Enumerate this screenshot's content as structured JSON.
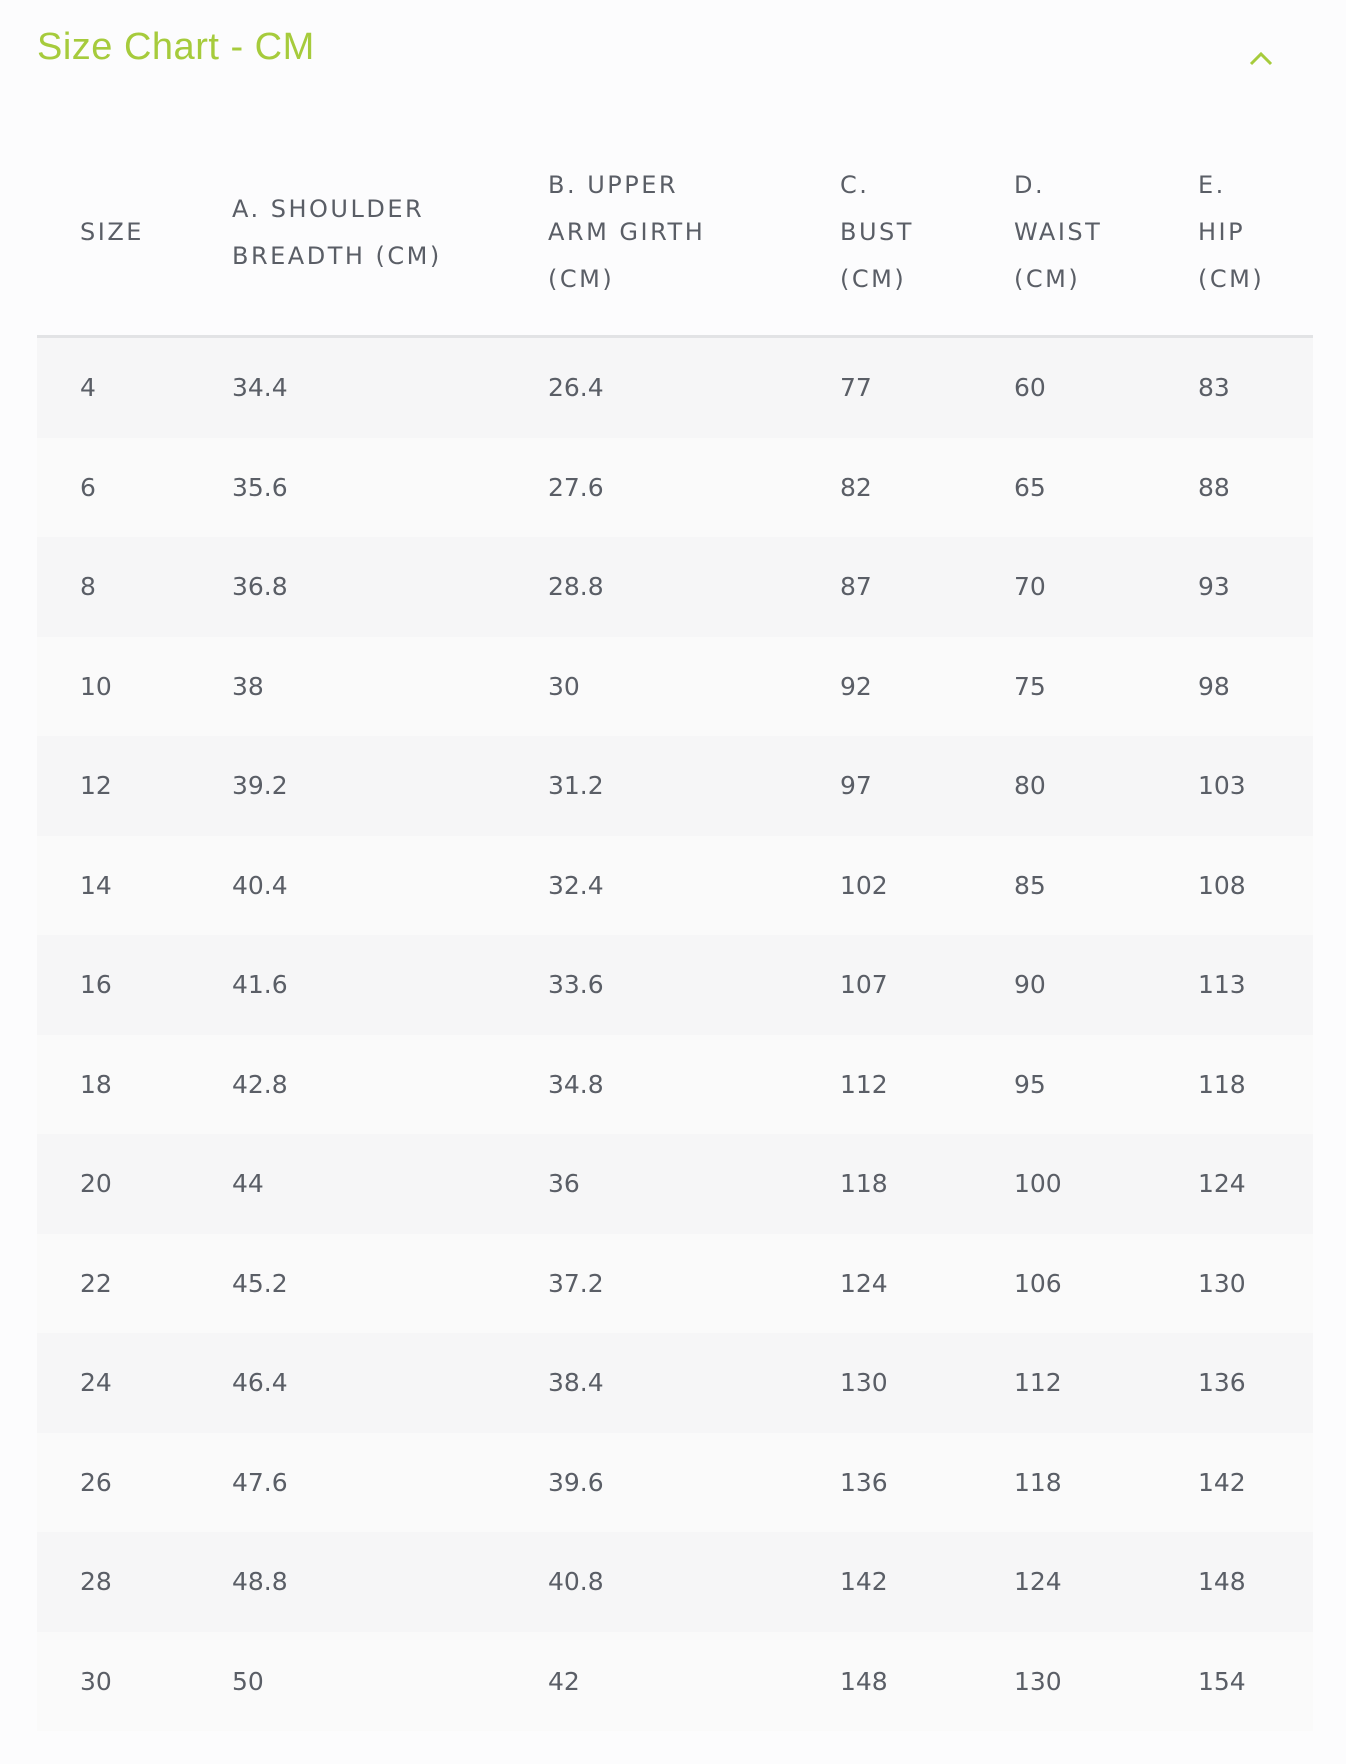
{
  "title": "Size Chart - CM",
  "colors": {
    "accent": "#a6cb3c",
    "text": "#5a5e66"
  },
  "collapse_icon": "chevron-up-icon",
  "headers": [
    [
      "SIZE"
    ],
    [
      "A. SHOULDER",
      "BREADTH (CM)"
    ],
    [
      "B. UPPER",
      "ARM GIRTH",
      "(CM)"
    ],
    [
      "C.",
      "BUST",
      "(CM)"
    ],
    [
      "D.",
      "WAIST",
      "(CM)"
    ],
    [
      "E.",
      "HIP",
      "(CM)"
    ]
  ],
  "rows": [
    [
      "4",
      "34.4",
      "26.4",
      "77",
      "60",
      "83"
    ],
    [
      "6",
      "35.6",
      "27.6",
      "82",
      "65",
      "88"
    ],
    [
      "8",
      "36.8",
      "28.8",
      "87",
      "70",
      "93"
    ],
    [
      "10",
      "38",
      "30",
      "92",
      "75",
      "98"
    ],
    [
      "12",
      "39.2",
      "31.2",
      "97",
      "80",
      "103"
    ],
    [
      "14",
      "40.4",
      "32.4",
      "102",
      "85",
      "108"
    ],
    [
      "16",
      "41.6",
      "33.6",
      "107",
      "90",
      "113"
    ],
    [
      "18",
      "42.8",
      "34.8",
      "112",
      "95",
      "118"
    ],
    [
      "20",
      "44",
      "36",
      "118",
      "100",
      "124"
    ],
    [
      "22",
      "45.2",
      "37.2",
      "124",
      "106",
      "130"
    ],
    [
      "24",
      "46.4",
      "38.4",
      "130",
      "112",
      "136"
    ],
    [
      "26",
      "47.6",
      "39.6",
      "136",
      "118",
      "142"
    ],
    [
      "28",
      "48.8",
      "40.8",
      "142",
      "124",
      "148"
    ],
    [
      "30",
      "50",
      "42",
      "148",
      "130",
      "154"
    ]
  ]
}
